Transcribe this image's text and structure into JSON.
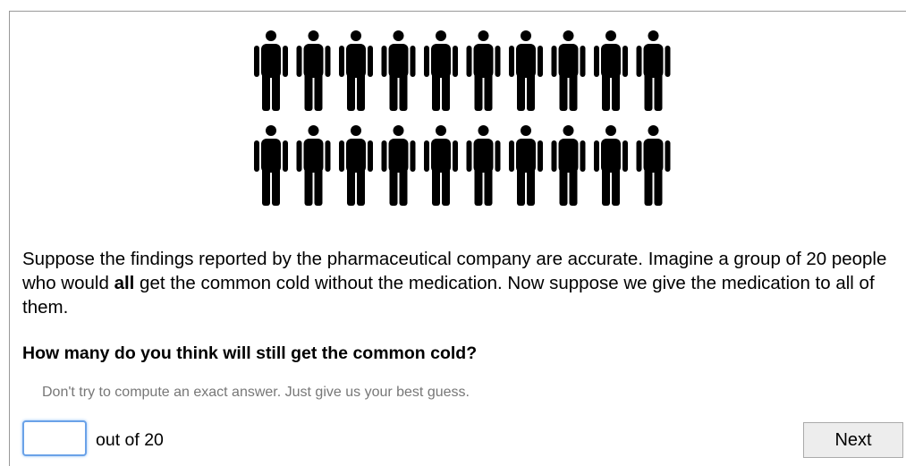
{
  "prompt": {
    "parts": [
      "Suppose the findings reported by the pharmaceutical company are accurate. Imagine a group of 20 people who would ",
      "all",
      " get the common cold without the medication. Now suppose we give the medication to all of them."
    ]
  },
  "question": "How many do you think will still get the common cold?",
  "hint": "Don't try to compute an exact answer. Just give us your best guess.",
  "answer": {
    "suffix": "out of 20"
  },
  "button": "Next"
}
